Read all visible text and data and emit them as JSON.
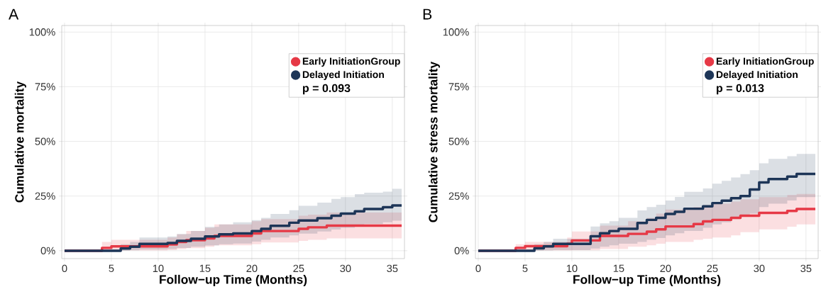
{
  "chart_data": [
    {
      "type": "step",
      "title": "A",
      "xlabel": "Follow−up Time (Months)",
      "ylabel": "Cumulative mortality",
      "xlim": [
        -0.3,
        36.3
      ],
      "ylim": [
        -3.6,
        103
      ],
      "xticks": [
        0,
        5,
        10,
        15,
        20,
        25,
        30,
        35
      ],
      "yticks": [
        {
          "value": 0,
          "label": "0%"
        },
        {
          "value": 25,
          "label": "25%"
        },
        {
          "value": 50,
          "label": "50%"
        },
        {
          "value": 75,
          "label": "75%"
        },
        {
          "value": 100,
          "label": "100%"
        }
      ],
      "grid": true,
      "legend": "top right",
      "annotations": [
        "p = 0.093"
      ],
      "series": [
        {
          "name": "Early InitiationGroup",
          "color": "#e63946",
          "x": [
            0,
            4,
            5,
            11,
            12,
            13,
            15,
            16,
            20,
            21,
            25,
            26,
            28,
            36
          ],
          "values": [
            0,
            1.3,
            2,
            2.9,
            4,
            4.8,
            5.6,
            6.8,
            7.9,
            9,
            10,
            10.7,
            11.5,
            11.5
          ],
          "upper": [
            0,
            4,
            5,
            6,
            7.5,
            9,
            10.5,
            12,
            13.5,
            14.5,
            16,
            16.5,
            17.5,
            17.5
          ],
          "lower": [
            0,
            0,
            0.1,
            0.3,
            0.8,
            1.2,
            1.8,
            2.5,
            3,
            3.8,
            4.5,
            5,
            5.6,
            5.6
          ]
        },
        {
          "name": "Delayed Initiation",
          "color": "#1d3557",
          "x": [
            0,
            4,
            6,
            7,
            8,
            11,
            12,
            13.5,
            15,
            16.5,
            18,
            20,
            21,
            22,
            24,
            25,
            27,
            28.5,
            29.5,
            31,
            32,
            34,
            35,
            36
          ],
          "values": [
            0,
            0,
            1,
            1.8,
            3.1,
            3.5,
            4.5,
            5.5,
            6.5,
            7.5,
            7.9,
            9,
            10,
            11.4,
            12.8,
            13.8,
            14.9,
            16,
            17,
            18,
            19.1,
            19.9,
            20.7,
            20.7
          ],
          "upper": [
            0,
            0,
            3,
            4,
            6,
            6.5,
            7.7,
            9,
            10.9,
            12,
            13,
            14,
            15,
            16.8,
            18.5,
            20.5,
            22,
            23.7,
            24.5,
            25.9,
            26.5,
            27,
            28.3,
            28.3
          ],
          "lower": [
            0,
            0,
            0,
            0.2,
            0.5,
            0.8,
            1.3,
            1.8,
            2.4,
            3,
            3.3,
            4.2,
            5,
            6,
            7,
            7.8,
            8.8,
            9.7,
            10.5,
            11.3,
            12.2,
            13,
            13.7,
            13.7
          ]
        }
      ]
    },
    {
      "type": "step",
      "title": "B",
      "xlabel": "Follow−up Time (Months)",
      "ylabel": "Cumulative stress mortality",
      "xlim": [
        -0.3,
        36.3
      ],
      "ylim": [
        -3.6,
        103
      ],
      "xticks": [
        0,
        5,
        10,
        15,
        20,
        25,
        30,
        35
      ],
      "yticks": [
        {
          "value": 0,
          "label": "0%"
        },
        {
          "value": 25,
          "label": "25%"
        },
        {
          "value": 50,
          "label": "50%"
        },
        {
          "value": 75,
          "label": "75%"
        },
        {
          "value": 100,
          "label": "100%"
        }
      ],
      "grid": true,
      "legend": "top right",
      "annotations": [
        "p = 0.013"
      ],
      "series": [
        {
          "name": "Early InitiationGroup",
          "color": "#e63946",
          "x": [
            0,
            4,
            5,
            9.5,
            10,
            13,
            16,
            18,
            19,
            20,
            23,
            24,
            25,
            27,
            28,
            30,
            33,
            34,
            36
          ],
          "values": [
            0,
            1.3,
            2.1,
            3.1,
            4.7,
            6.8,
            7.7,
            8.7,
            9.8,
            11.1,
            12.2,
            13.4,
            14.1,
            15,
            16,
            17.3,
            18.2,
            19.1,
            19.1
          ],
          "upper": [
            0,
            3,
            4,
            6,
            8.8,
            11.5,
            13.5,
            15,
            17,
            18.8,
            20,
            20.8,
            21.5,
            22.5,
            23.5,
            24.5,
            25.5,
            26,
            26
          ],
          "lower": [
            0,
            0,
            0.1,
            0.15,
            0.2,
            0.8,
            1.8,
            2.5,
            3.2,
            4,
            5,
            5.5,
            6,
            7,
            8.5,
            9.8,
            11,
            12,
            12
          ]
        },
        {
          "name": "Delayed Initiation",
          "color": "#1d3557",
          "x": [
            0,
            4,
            6,
            7,
            8,
            12,
            13,
            14,
            15,
            17,
            18,
            19,
            20,
            21,
            22,
            24,
            25,
            26,
            27,
            28,
            29,
            30,
            31,
            33,
            34,
            36
          ],
          "values": [
            0,
            0,
            1.1,
            2,
            3.1,
            6.6,
            8,
            9,
            10,
            12.7,
            14.1,
            15,
            16.8,
            17.8,
            19.2,
            20.3,
            21.8,
            22.9,
            24,
            25,
            28,
            31.2,
            32.8,
            33.9,
            35.1,
            35.1
          ],
          "upper": [
            0,
            0,
            3,
            4,
            5.5,
            11.1,
            12.5,
            13.5,
            15,
            18.4,
            20,
            21,
            23,
            24.6,
            26.9,
            28.5,
            30.7,
            32,
            33.5,
            35,
            36.8,
            40,
            42,
            43.2,
            44.3,
            44.3
          ],
          "lower": [
            0,
            0,
            0,
            0.1,
            0.3,
            1,
            1.8,
            2.5,
            3.2,
            4,
            5,
            5.8,
            7,
            8,
            9,
            10.5,
            12,
            13,
            14.5,
            16,
            17,
            20,
            21.5,
            23,
            24.5,
            24.5
          ]
        }
      ]
    }
  ]
}
